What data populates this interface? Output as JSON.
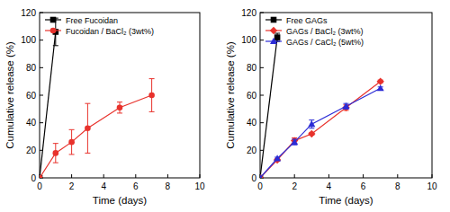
{
  "chart_data": [
    {
      "type": "line",
      "x_label": "Time (days)",
      "y_label": "Cumulative release (%)",
      "xlim": [
        0,
        10
      ],
      "xticks": [
        0,
        2,
        4,
        6,
        8,
        10
      ],
      "ylim": [
        0,
        120
      ],
      "yticks": [
        0,
        20,
        40,
        60,
        80,
        100,
        120
      ],
      "legend": "upper left",
      "grid": false,
      "series": [
        {
          "name": "Free Fucoidan",
          "color": "#000000",
          "marker": "square",
          "line_style": "solid",
          "x": [
            0,
            1
          ],
          "values": [
            0,
            106
          ],
          "errors": [
            null,
            10
          ]
        },
        {
          "name": "Fucoidan / BaCl₂ (3wt%)",
          "color": "#e8322c",
          "marker": "circle",
          "line_style": "solid",
          "x": [
            0,
            1,
            2,
            3,
            5,
            7
          ],
          "values": [
            0,
            18,
            26,
            36,
            51,
            60
          ],
          "errors": [
            null,
            7,
            9,
            18,
            4,
            12
          ]
        }
      ]
    },
    {
      "type": "line",
      "x_label": "Time (days)",
      "y_label": "Cumulative release (%)",
      "xlim": [
        0,
        10
      ],
      "xticks": [
        0,
        2,
        4,
        6,
        8,
        10
      ],
      "ylim": [
        0,
        120
      ],
      "yticks": [
        0,
        20,
        40,
        60,
        80,
        100,
        120
      ],
      "legend": "upper left",
      "grid": false,
      "series": [
        {
          "name": "Free GAGs",
          "color": "#000000",
          "marker": "square",
          "line_style": "solid",
          "x": [
            0,
            1
          ],
          "values": [
            0,
            102
          ],
          "errors": [
            null,
            3
          ]
        },
        {
          "name": "GAGs / BaCl₂ (3wt%)",
          "color": "#e8322c",
          "marker": "diamond",
          "line_style": "solid",
          "x": [
            0,
            1,
            2,
            3,
            5,
            7
          ],
          "values": [
            0,
            13,
            27,
            32,
            51,
            70
          ],
          "errors": [
            null,
            1,
            2,
            1,
            2,
            1
          ]
        },
        {
          "name": "GAGs / CaCl₂ (5wt%)",
          "color": "#2b2bd6",
          "marker": "triangle",
          "line_style": "solid",
          "x": [
            0,
            1,
            2,
            3,
            5,
            7
          ],
          "values": [
            0,
            14,
            26,
            39,
            52,
            65
          ],
          "errors": [
            null,
            1,
            2,
            3,
            2,
            1
          ]
        }
      ]
    }
  ]
}
